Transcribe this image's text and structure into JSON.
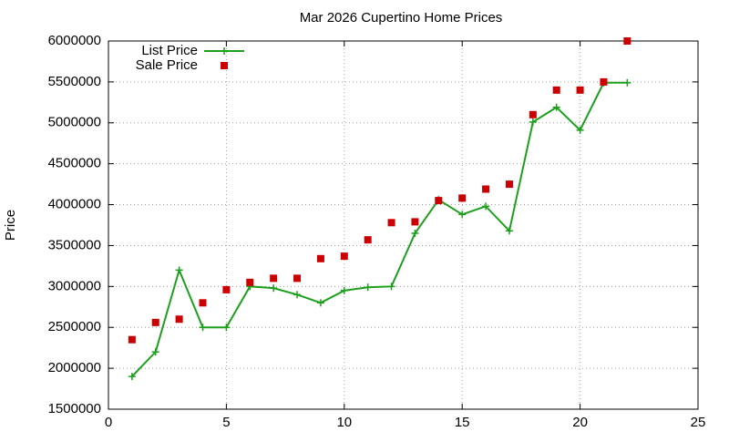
{
  "chart_data": {
    "type": "line",
    "title": "Mar 2026 Cupertino Home Prices",
    "y_label": "Price",
    "x": [
      1,
      2,
      3,
      4,
      5,
      6,
      7,
      8,
      9,
      10,
      11,
      12,
      13,
      14,
      15,
      16,
      17,
      18,
      19,
      20,
      21,
      22
    ],
    "series": [
      {
        "name": "List Price",
        "color": "#1ca01c",
        "style": "linespoints",
        "values": [
          1900000,
          2200000,
          3200000,
          2500000,
          2500000,
          3000000,
          2980000,
          2900000,
          2800000,
          2950000,
          2990000,
          3000000,
          3650000,
          4060000,
          3880000,
          3980000,
          3680000,
          5010000,
          5190000,
          4910000,
          5490000,
          5490000
        ]
      },
      {
        "name": "Sale Price",
        "color": "#cc0000",
        "style": "points",
        "values": [
          2350000,
          2560000,
          2600000,
          2800000,
          2960000,
          3050000,
          3100000,
          3100000,
          3340000,
          3370000,
          3570000,
          3780000,
          3790000,
          4050000,
          4080000,
          4190000,
          4250000,
          5100000,
          5400000,
          5400000,
          5500000,
          6000000
        ]
      }
    ],
    "xlim": [
      0,
      25
    ],
    "xticks": [
      0,
      5,
      10,
      15,
      20,
      25
    ],
    "ylim": [
      1500000,
      6000000
    ],
    "yticks": [
      1500000,
      2000000,
      2500000,
      3000000,
      3500000,
      4000000,
      4500000,
      5000000,
      5500000,
      6000000
    ],
    "grid": true,
    "legend": "upper-left"
  }
}
